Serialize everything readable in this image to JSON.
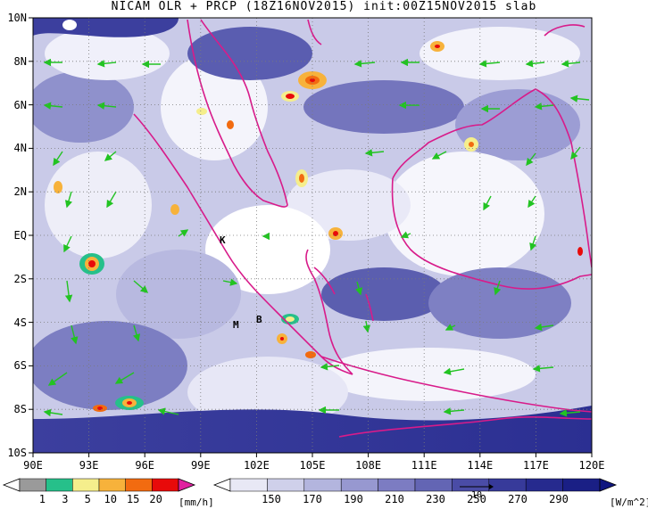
{
  "title": "NICAM OLR + PRCP (18Z16NOV2015) init:00Z15NOV2015 slab",
  "map": {
    "lon_range": [
      90,
      120
    ],
    "lat_range": [
      -10,
      10
    ],
    "lon_labels": [
      "90E",
      "93E",
      "96E",
      "99E",
      "102E",
      "105E",
      "108E",
      "111E",
      "114E",
      "117E",
      "120E"
    ],
    "lat_labels": [
      "10N",
      "8N",
      "6N",
      "4N",
      "2N",
      "EQ",
      "2S",
      "4S",
      "6S",
      "8S",
      "10S"
    ],
    "grid": "dotted",
    "place_markers": [
      "K",
      "M",
      "B"
    ],
    "coastline_color": "#d81b8a",
    "wind_vector_color": "#22c322"
  },
  "precip_colorbar": {
    "ticks": [
      "1",
      "3",
      "5",
      "10",
      "15",
      "20"
    ],
    "unit": "[mm/h]",
    "colors": [
      "#ffffff",
      "#9a9a9a",
      "#26c08a",
      "#f5ee8c",
      "#f7b23b",
      "#f26b10",
      "#e80a0a",
      "#e020a0"
    ]
  },
  "olr_colorbar": {
    "ticks": [
      "150",
      "170",
      "190",
      "210",
      "230",
      "250",
      "270",
      "290"
    ],
    "unit": "[W/m^2]",
    "colors": [
      "#ffffff",
      "#e8e8f5",
      "#cfd0ea",
      "#b3b5de",
      "#9798d0",
      "#7c7cc2",
      "#6365b4",
      "#4a4ca6",
      "#373a9a",
      "#262a8e",
      "#1a1f85",
      "#101680"
    ]
  },
  "ref_vector_label": "10"
}
